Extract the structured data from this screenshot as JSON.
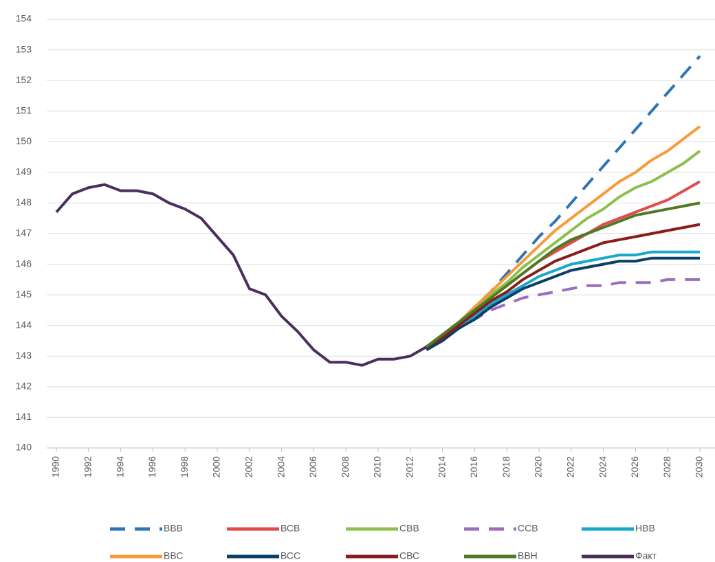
{
  "chart_data": {
    "type": "line",
    "x": [
      1990,
      1991,
      1992,
      1993,
      1994,
      1995,
      1996,
      1997,
      1998,
      1999,
      2000,
      2001,
      2002,
      2003,
      2004,
      2005,
      2006,
      2007,
      2008,
      2009,
      2010,
      2011,
      2012,
      2013,
      2014,
      2015,
      2016,
      2017,
      2018,
      2019,
      2020,
      2021,
      2022,
      2023,
      2024,
      2025,
      2026,
      2027,
      2028,
      2029,
      2030
    ],
    "xlim": [
      1989.4,
      2030.94
    ],
    "xticks": [
      1990,
      1992,
      1994,
      1996,
      1998,
      2000,
      2002,
      2004,
      2006,
      2008,
      2010,
      2012,
      2014,
      2016,
      2018,
      2020,
      2022,
      2024,
      2026,
      2028,
      2030
    ],
    "ylim": [
      140,
      154
    ],
    "yticks": [
      140,
      141,
      142,
      143,
      144,
      145,
      146,
      147,
      148,
      149,
      150,
      151,
      152,
      153,
      154
    ],
    "grid": true,
    "legend": "bottom",
    "series": [
      {
        "name": "ВВВ",
        "color": "#2e75b6",
        "dashed": true,
        "values": [
          null,
          null,
          null,
          null,
          null,
          null,
          null,
          null,
          null,
          null,
          null,
          null,
          null,
          null,
          null,
          null,
          null,
          null,
          null,
          null,
          null,
          null,
          null,
          143.3,
          143.7,
          144.1,
          144.6,
          145.1,
          145.7,
          146.3,
          146.9,
          147.4,
          148.0,
          148.6,
          149.2,
          149.8,
          150.4,
          151.0,
          151.6,
          152.2,
          152.8
        ]
      },
      {
        "name": "ВСВ",
        "color": "#e04b4b",
        "dashed": false,
        "values": [
          null,
          null,
          null,
          null,
          null,
          null,
          null,
          null,
          null,
          null,
          null,
          null,
          null,
          null,
          null,
          null,
          null,
          null,
          null,
          null,
          null,
          null,
          null,
          143.3,
          143.7,
          144.1,
          144.5,
          144.9,
          145.3,
          145.7,
          146.1,
          146.4,
          146.7,
          147.0,
          147.3,
          147.5,
          147.7,
          147.9,
          148.1,
          148.4,
          148.7
        ]
      },
      {
        "name": "СВВ",
        "color": "#8cc04b",
        "dashed": false,
        "values": [
          null,
          null,
          null,
          null,
          null,
          null,
          null,
          null,
          null,
          null,
          null,
          null,
          null,
          null,
          null,
          null,
          null,
          null,
          null,
          null,
          null,
          null,
          null,
          143.3,
          143.7,
          144.1,
          144.5,
          145.0,
          145.4,
          145.9,
          146.3,
          146.7,
          147.1,
          147.5,
          147.8,
          148.2,
          148.5,
          148.7,
          149.0,
          149.3,
          149.7
        ]
      },
      {
        "name": "ССВ",
        "color": "#9b6dbf",
        "dashed": true,
        "values": [
          null,
          null,
          null,
          null,
          null,
          null,
          null,
          null,
          null,
          null,
          null,
          null,
          null,
          null,
          null,
          null,
          null,
          null,
          null,
          null,
          null,
          null,
          null,
          143.3,
          143.6,
          143.9,
          144.2,
          144.5,
          144.7,
          144.9,
          145.0,
          145.1,
          145.2,
          145.3,
          145.3,
          145.4,
          145.4,
          145.4,
          145.5,
          145.5,
          145.5
        ]
      },
      {
        "name": "НВВ",
        "color": "#17a9c9",
        "dashed": false,
        "values": [
          null,
          null,
          null,
          null,
          null,
          null,
          null,
          null,
          null,
          null,
          null,
          null,
          null,
          null,
          null,
          null,
          null,
          null,
          null,
          null,
          null,
          null,
          null,
          143.3,
          143.6,
          144.0,
          144.3,
          144.7,
          145.0,
          145.3,
          145.6,
          145.8,
          146.0,
          146.1,
          146.2,
          146.3,
          146.3,
          146.4,
          146.4,
          146.4,
          146.4
        ]
      },
      {
        "name": "ВВС",
        "color": "#f79a3a",
        "dashed": false,
        "values": [
          null,
          null,
          null,
          null,
          null,
          null,
          null,
          null,
          null,
          null,
          null,
          null,
          null,
          null,
          null,
          null,
          null,
          null,
          null,
          null,
          null,
          null,
          null,
          143.3,
          143.7,
          144.1,
          144.6,
          145.1,
          145.6,
          146.1,
          146.6,
          147.1,
          147.5,
          147.9,
          148.3,
          148.7,
          149.0,
          149.4,
          149.7,
          150.1,
          150.5
        ]
      },
      {
        "name": "ВСС",
        "color": "#0d3f66",
        "dashed": false,
        "values": [
          null,
          null,
          null,
          null,
          null,
          null,
          null,
          null,
          null,
          null,
          null,
          null,
          null,
          null,
          null,
          null,
          null,
          null,
          null,
          null,
          null,
          null,
          null,
          143.2,
          143.5,
          143.9,
          144.2,
          144.6,
          144.9,
          145.2,
          145.4,
          145.6,
          145.8,
          145.9,
          146.0,
          146.1,
          146.1,
          146.2,
          146.2,
          146.2,
          146.2
        ]
      },
      {
        "name": "СВС",
        "color": "#8b1c1c",
        "dashed": false,
        "values": [
          null,
          null,
          null,
          null,
          null,
          null,
          null,
          null,
          null,
          null,
          null,
          null,
          null,
          null,
          null,
          null,
          null,
          null,
          null,
          null,
          null,
          null,
          null,
          143.3,
          143.6,
          144.0,
          144.4,
          144.8,
          145.1,
          145.5,
          145.8,
          146.1,
          146.3,
          146.5,
          146.7,
          146.8,
          146.9,
          147.0,
          147.1,
          147.2,
          147.3
        ]
      },
      {
        "name": "ВВН",
        "color": "#4e7a25",
        "dashed": false,
        "values": [
          null,
          null,
          null,
          null,
          null,
          null,
          null,
          null,
          null,
          null,
          null,
          null,
          null,
          null,
          null,
          null,
          null,
          null,
          null,
          null,
          null,
          null,
          null,
          143.3,
          143.7,
          144.1,
          144.5,
          144.9,
          145.3,
          145.7,
          146.1,
          146.5,
          146.8,
          147.0,
          147.2,
          147.4,
          147.6,
          147.7,
          147.8,
          147.9,
          148.0
        ]
      },
      {
        "name": "Факт",
        "color": "#4b2e5c",
        "dashed": false,
        "values": [
          147.7,
          148.3,
          148.5,
          148.6,
          148.4,
          148.4,
          148.3,
          148.0,
          147.8,
          147.5,
          146.9,
          146.3,
          145.2,
          145.0,
          144.3,
          143.8,
          143.2,
          142.8,
          142.8,
          142.7,
          142.9,
          142.9,
          143.0,
          143.3,
          null,
          null,
          null,
          null,
          null,
          null,
          null,
          null,
          null,
          null,
          null,
          null,
          null,
          null,
          null,
          null,
          null
        ]
      }
    ]
  }
}
